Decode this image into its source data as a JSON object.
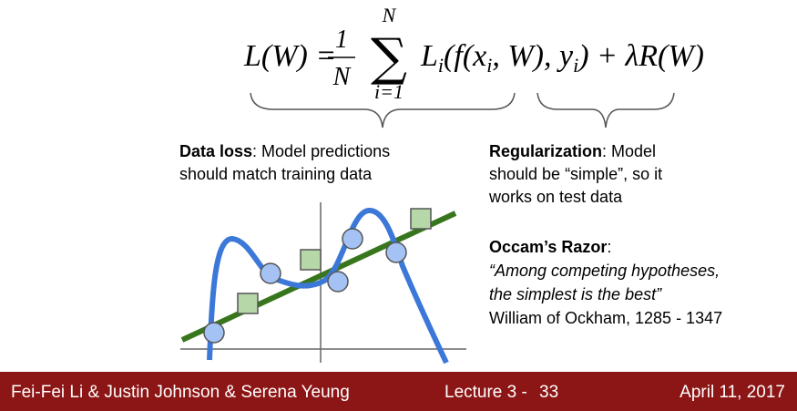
{
  "formula": {
    "lhs": "L(W) =",
    "numerator": "1",
    "denominator": "N",
    "sum": "∑",
    "sum_upper": "N",
    "sum_lower": "i=1",
    "term": [
      "L",
      "i",
      "(f(x",
      "i",
      ", W), y",
      "i",
      ") + λR(W)"
    ]
  },
  "data_loss": {
    "heading": "Data loss",
    "lines": [
      ": Model predictions",
      "should match training data"
    ]
  },
  "regularization": {
    "heading": "Regularization",
    "lines": [
      ": Model",
      "should be “simple”, so it",
      "works on test data"
    ]
  },
  "occam": {
    "heading": "Occam’s Razor",
    "colon": ":",
    "quote": [
      "“Among competing hypotheses,",
      "the simplest is the best”"
    ],
    "attribution": "William of Ockham, 1285 - 1347"
  },
  "footer": {
    "authors": "Fei-Fei Li & Justin Johnson & Serena Yeung",
    "lecture": "Lecture 3 -",
    "page": "33",
    "date": "April 11, 2017"
  }
}
